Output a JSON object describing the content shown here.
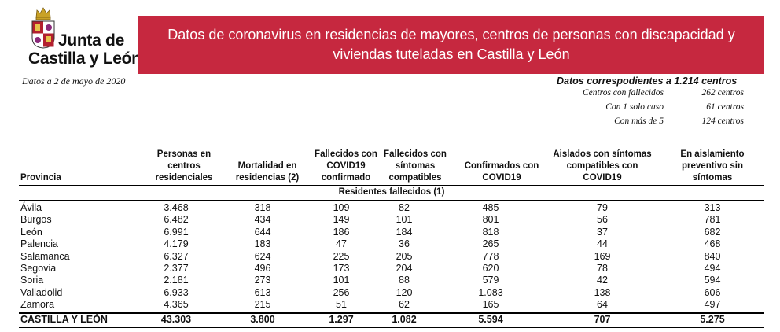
{
  "logo": {
    "line1": "Junta de",
    "line2": "Castilla y León"
  },
  "banner": {
    "title": "Datos de coronavirus en residencias de mayores, centros de personas con discapacidad y viviendas tuteladas en Castilla y León"
  },
  "date": "Datos a 2 de mayo de 2020",
  "summary": {
    "title": "Datos correspodientes a 1.214 centros",
    "rows": [
      {
        "label": "Centros con fallecidos",
        "value": "262 centros"
      },
      {
        "label": "Con 1 solo caso",
        "value": "61 centros"
      },
      {
        "label": "Con más de 5",
        "value": "124 centros"
      }
    ]
  },
  "table": {
    "headers": [
      "Provincia",
      "Personas en centros residenciales",
      "Mortalidad en residencias (2)",
      "Fallecidos con COVID19 confirmado",
      "Fallecidos con síntomas compatibles",
      "Confirmados con COVID19",
      "Aislados con síntomas compatibles con COVID19",
      "En aislamiento preventivo sin síntomas"
    ],
    "subheader": "Residentes fallecidos (1)",
    "rows": [
      [
        "Ávila",
        "3.468",
        "318",
        "109",
        "82",
        "485",
        "79",
        "313"
      ],
      [
        "Burgos",
        "6.482",
        "434",
        "149",
        "101",
        "801",
        "56",
        "781"
      ],
      [
        "León",
        "6.991",
        "644",
        "186",
        "184",
        "818",
        "37",
        "682"
      ],
      [
        "Palencia",
        "4.179",
        "183",
        "47",
        "36",
        "265",
        "44",
        "468"
      ],
      [
        "Salamanca",
        "6.327",
        "624",
        "225",
        "205",
        "778",
        "169",
        "840"
      ],
      [
        "Segovia",
        "2.377",
        "496",
        "173",
        "204",
        "620",
        "78",
        "494"
      ],
      [
        "Soria",
        "2.181",
        "273",
        "101",
        "88",
        "579",
        "42",
        "594"
      ],
      [
        "Valladolid",
        "6.933",
        "613",
        "256",
        "120",
        "1.083",
        "138",
        "606"
      ],
      [
        "Zamora",
        "4.365",
        "215",
        "51",
        "62",
        "165",
        "64",
        "497"
      ]
    ],
    "total": [
      "CASTILLA Y LEÓN",
      "43.303",
      "3.800",
      "1.297",
      "1.082",
      "5.594",
      "707",
      "5.275"
    ]
  },
  "colors": {
    "banner": "#c6283f",
    "text": "#111111"
  }
}
